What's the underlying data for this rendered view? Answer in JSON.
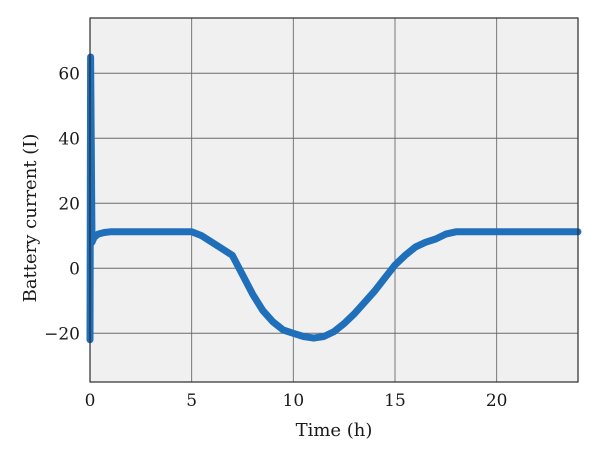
{
  "chart_data": {
    "type": "line",
    "xlabel": "Time (h)",
    "ylabel": "Battery current (I)",
    "xlim": [
      0,
      24
    ],
    "ylim": [
      -35,
      77
    ],
    "x_ticks": [
      0,
      5,
      10,
      15,
      20
    ],
    "y_ticks": [
      -20,
      0,
      20,
      40,
      60
    ],
    "x_tick_labels": [
      "0",
      "5",
      "10",
      "15",
      "20"
    ],
    "y_tick_labels": [
      "−20",
      "0",
      "20",
      "40",
      "60"
    ],
    "grid": true,
    "legend": "none",
    "colors": {
      "series": "#1f6fba",
      "plot_background": "#f0f0f0",
      "grid": "#6b6b6b",
      "axis": "#2a2a2a"
    },
    "series": [
      {
        "x": [
          0,
          0.03,
          0.1,
          0.2,
          0.4,
          0.7,
          1,
          2,
          3,
          4,
          5,
          5.5,
          6,
          6.5,
          7,
          7.5,
          8,
          8.5,
          9,
          9.5,
          10,
          10.5,
          11,
          11.5,
          12,
          12.5,
          13,
          13.5,
          14,
          14.5,
          15,
          15.5,
          16,
          16.5,
          17,
          17.5,
          18,
          19,
          20,
          21,
          22,
          23,
          24
        ],
        "y": [
          -22,
          65,
          8,
          9.5,
          10.5,
          11,
          11.2,
          11.2,
          11.2,
          11.2,
          11.2,
          10,
          8,
          6,
          4,
          -2,
          -8,
          -13,
          -16.5,
          -19,
          -20,
          -21,
          -21.5,
          -21,
          -19.5,
          -17,
          -14,
          -10.5,
          -7,
          -3,
          1,
          4,
          6.5,
          8,
          9,
          10.5,
          11.2,
          11.2,
          11.2,
          11.2,
          11.2,
          11.2,
          11.2
        ]
      }
    ]
  }
}
